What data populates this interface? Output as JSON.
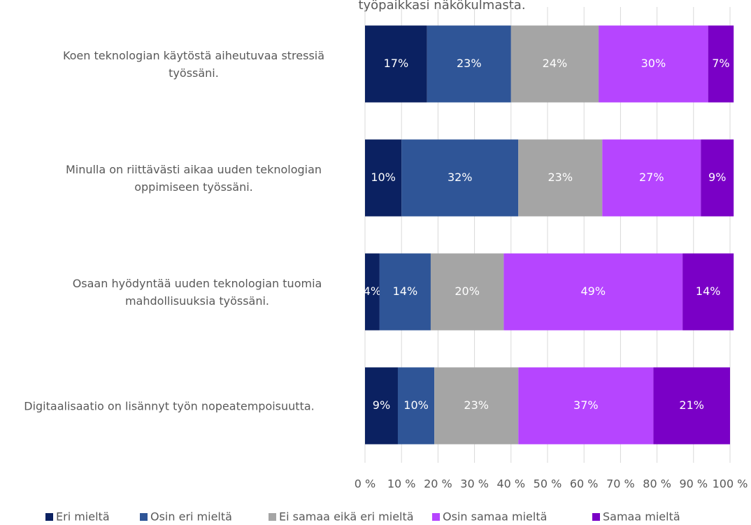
{
  "chart_data": {
    "type": "stacked-bar-horizontal",
    "title": "työpaikkasi näkökulmasta.",
    "categories": [
      "Koen teknologian käytöstä aiheutuvaa stressiä työssäni.",
      "Minulla on riittävästi aikaa uuden  teknologian oppimiseen työssäni.",
      "Osaan hyödyntää uuden teknologian tuomia mahdollisuuksia työssäni.",
      "Digitaalisaatio on lisännyt työn nopeatempoisuutta."
    ],
    "series": [
      {
        "name": "Eri mieltä",
        "color": "#0b2161",
        "values": [
          17,
          10,
          4,
          9
        ],
        "value_labels": [
          "17%",
          "10%",
          "4%",
          "9%"
        ]
      },
      {
        "name": "Osin eri mieltä",
        "color": "#2f5597",
        "values": [
          23,
          32,
          14,
          10
        ],
        "value_labels": [
          "23%",
          "32%",
          "14%",
          "10%"
        ]
      },
      {
        "name": "Ei samaa eikä eri mieltä",
        "color": "#a5a5a5",
        "values": [
          24,
          23,
          20,
          23
        ],
        "value_labels": [
          "24%",
          "23%",
          "20%",
          "23%"
        ]
      },
      {
        "name": "Osin samaa mieltä",
        "color": "#b645ff",
        "values": [
          30,
          27,
          49,
          37
        ],
        "value_labels": [
          "30%",
          "27%",
          "49%",
          "37%"
        ]
      },
      {
        "name": "Samaa mieltä",
        "color": "#7a00c6",
        "values": [
          7,
          9,
          14,
          21
        ],
        "value_labels": [
          "7%",
          "9%",
          "14%",
          "21%"
        ]
      }
    ],
    "xlim": [
      0,
      100
    ],
    "xticks": [
      {
        "value": 0,
        "label": "0 %"
      },
      {
        "value": 10,
        "label": "10 %"
      },
      {
        "value": 20,
        "label": "20 %"
      },
      {
        "value": 30,
        "label": "30 %"
      },
      {
        "value": 40,
        "label": "40 %"
      },
      {
        "value": 50,
        "label": "50 %"
      },
      {
        "value": 60,
        "label": "60 %"
      },
      {
        "value": 70,
        "label": "70 %"
      },
      {
        "value": 80,
        "label": "80 %"
      },
      {
        "value": 90,
        "label": "90 %"
      },
      {
        "value": 100,
        "label": "100 %"
      }
    ],
    "grid": true,
    "legend": "bottom"
  }
}
